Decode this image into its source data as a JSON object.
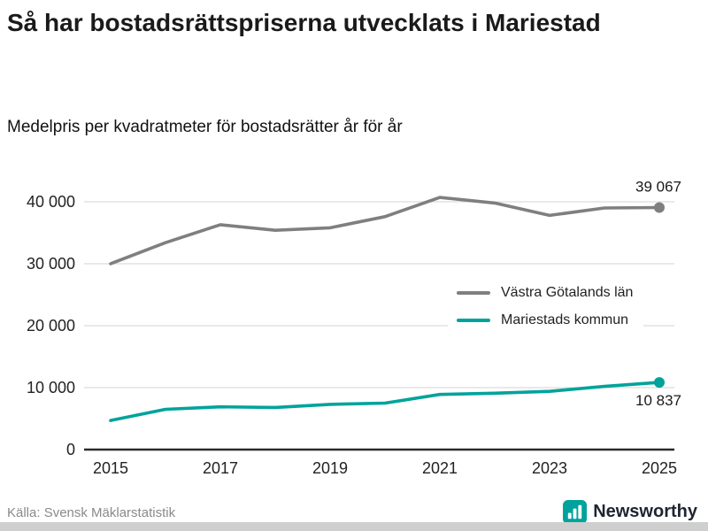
{
  "header": {
    "title": "Så har bostadsrättspriserna utvecklats i Mariestad",
    "subtitle": "Medelpris per kvadratmeter för bostadsrätter år för år"
  },
  "chart_data": {
    "type": "line",
    "x": [
      2015,
      2016,
      2017,
      2018,
      2019,
      2020,
      2021,
      2022,
      2023,
      2024,
      2025
    ],
    "series": [
      {
        "name": "Västra Götalands län",
        "color": "#7f7f7f",
        "values": [
          30000,
          33400,
          36300,
          35400,
          35800,
          37600,
          40700,
          39800,
          37800,
          39000,
          39067
        ],
        "end_label": "39 067",
        "end_label_position": "above"
      },
      {
        "name": "Mariestads kommun",
        "color": "#00a39b",
        "values": [
          4700,
          6500,
          6900,
          6800,
          7300,
          7500,
          8900,
          9100,
          9400,
          10200,
          10837
        ],
        "end_label": "10 837",
        "end_label_position": "below"
      }
    ],
    "ylim": [
      0,
      40000
    ],
    "yticks": [
      0,
      10000,
      20000,
      30000,
      40000
    ],
    "ytick_labels": [
      "0",
      "10 000",
      "20 000",
      "30 000",
      "40 000"
    ],
    "xticks": [
      2015,
      2017,
      2019,
      2021,
      2023,
      2025
    ],
    "grid": true,
    "legend_position": "middle-right",
    "colors": {
      "grid": "#dcdcdc",
      "axis": "#2b2b2b"
    }
  },
  "footer": {
    "source": "Källa: Svensk Mäklarstatistik",
    "brand": "Newsworthy",
    "brand_color": "#00a39b"
  }
}
